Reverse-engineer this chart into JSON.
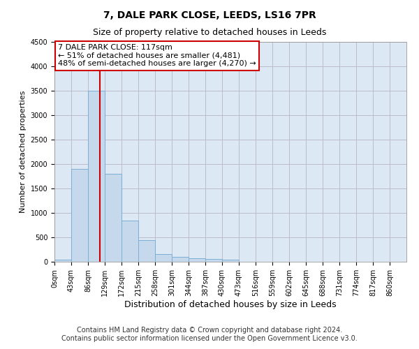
{
  "title": "7, DALE PARK CLOSE, LEEDS, LS16 7PR",
  "subtitle": "Size of property relative to detached houses in Leeds",
  "xlabel": "Distribution of detached houses by size in Leeds",
  "ylabel": "Number of detached properties",
  "bar_color": "#c6d9ec",
  "bar_edge_color": "#7bafd4",
  "grid_color": "#bbbbcc",
  "bg_color": "#dde8f5",
  "annotation_box_color": "#cc0000",
  "vline_color": "#cc0000",
  "bin_labels": [
    "0sqm",
    "43sqm",
    "86sqm",
    "129sqm",
    "172sqm",
    "215sqm",
    "258sqm",
    "301sqm",
    "344sqm",
    "387sqm",
    "430sqm",
    "473sqm",
    "516sqm",
    "559sqm",
    "602sqm",
    "645sqm",
    "688sqm",
    "731sqm",
    "774sqm",
    "817sqm",
    "860sqm"
  ],
  "bar_heights": [
    50,
    1900,
    3500,
    1800,
    850,
    450,
    160,
    100,
    70,
    55,
    40,
    0,
    0,
    0,
    0,
    0,
    0,
    0,
    0,
    0,
    0
  ],
  "bin_edges": [
    0,
    43,
    86,
    129,
    172,
    215,
    258,
    301,
    344,
    387,
    430,
    473,
    516,
    559,
    602,
    645,
    688,
    731,
    774,
    817,
    860
  ],
  "bin_width": 43,
  "ylim": [
    0,
    4500
  ],
  "yticks": [
    0,
    500,
    1000,
    1500,
    2000,
    2500,
    3000,
    3500,
    4000,
    4500
  ],
  "property_size": 117,
  "annotation_line1": "7 DALE PARK CLOSE: 117sqm",
  "annotation_line2": "← 51% of detached houses are smaller (4,481)",
  "annotation_line3": "48% of semi-detached houses are larger (4,270) →",
  "footer_line1": "Contains HM Land Registry data © Crown copyright and database right 2024.",
  "footer_line2": "Contains public sector information licensed under the Open Government Licence v3.0.",
  "title_fontsize": 10,
  "subtitle_fontsize": 9,
  "xlabel_fontsize": 9,
  "ylabel_fontsize": 8,
  "tick_fontsize": 7,
  "annotation_fontsize": 8,
  "footer_fontsize": 7
}
